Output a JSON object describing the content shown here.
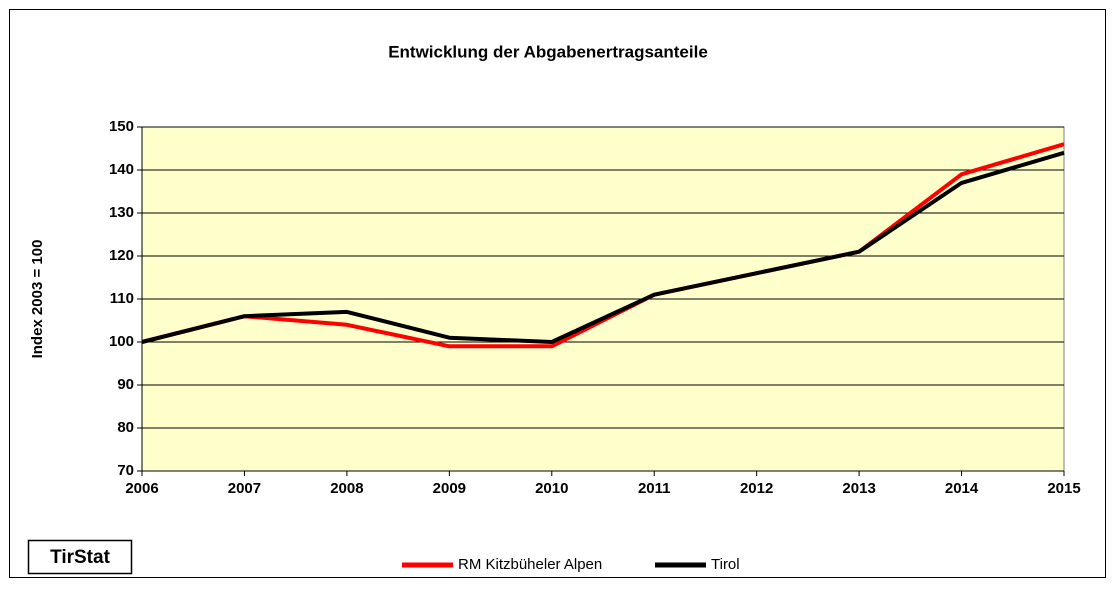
{
  "chart_data": {
    "type": "line",
    "title": "Entwicklung der Abgabenertragsanteile",
    "y_label": "Index 2003 = 100",
    "source_label": "TirStat",
    "x": [
      2006,
      2007,
      2008,
      2009,
      2010,
      2011,
      2012,
      2013,
      2014,
      2015
    ],
    "xlim": [
      2006,
      2015
    ],
    "xticks": [
      2006,
      2007,
      2008,
      2009,
      2010,
      2011,
      2012,
      2013,
      2014,
      2015
    ],
    "ylim": [
      70,
      150
    ],
    "yticks": [
      70,
      80,
      90,
      100,
      110,
      120,
      130,
      140,
      150
    ],
    "grid": true,
    "legend": "bottom",
    "series": [
      {
        "name": "RM Kitzbüheler Alpen",
        "color": "#ff0000",
        "values": [
          100,
          106,
          104,
          99,
          99,
          111,
          116,
          121,
          139,
          146
        ]
      },
      {
        "name": "Tirol",
        "color": "#000000",
        "values": [
          100,
          106,
          107,
          101,
          100,
          111,
          116,
          121,
          137,
          144
        ]
      }
    ]
  }
}
